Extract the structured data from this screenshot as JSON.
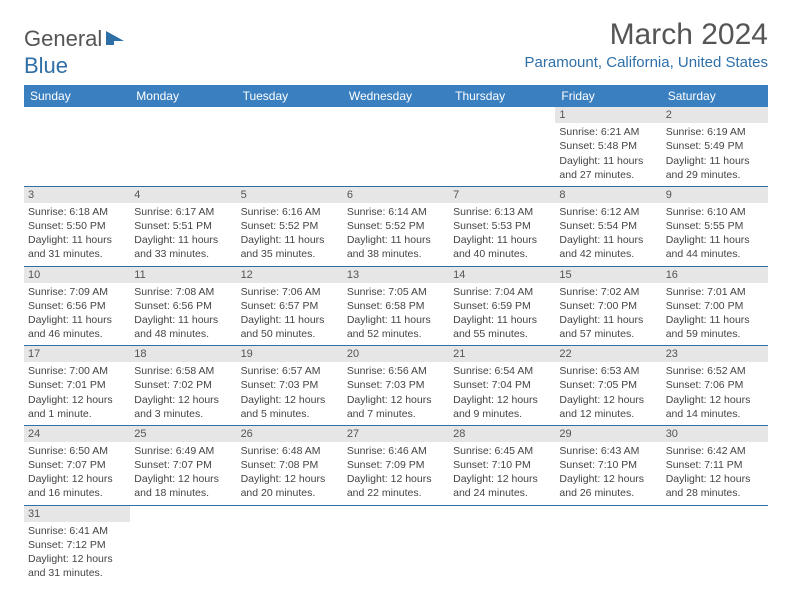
{
  "logo": {
    "text_main": "General",
    "text_accent": "Blue",
    "icon_name": "flag-icon",
    "accent_color": "#2f6fa8"
  },
  "title": "March 2024",
  "location": "Paramount, California, United States",
  "header_bg": "#3a7fbf",
  "header_text_color": "#ffffff",
  "daynum_bg": "#e6e6e6",
  "border_color": "#2f6fa8",
  "weekdays": [
    "Sunday",
    "Monday",
    "Tuesday",
    "Wednesday",
    "Thursday",
    "Friday",
    "Saturday"
  ],
  "weeks": [
    [
      null,
      null,
      null,
      null,
      null,
      {
        "n": "1",
        "sr": "Sunrise: 6:21 AM",
        "ss": "Sunset: 5:48 PM",
        "dl": "Daylight: 11 hours and 27 minutes."
      },
      {
        "n": "2",
        "sr": "Sunrise: 6:19 AM",
        "ss": "Sunset: 5:49 PM",
        "dl": "Daylight: 11 hours and 29 minutes."
      }
    ],
    [
      {
        "n": "3",
        "sr": "Sunrise: 6:18 AM",
        "ss": "Sunset: 5:50 PM",
        "dl": "Daylight: 11 hours and 31 minutes."
      },
      {
        "n": "4",
        "sr": "Sunrise: 6:17 AM",
        "ss": "Sunset: 5:51 PM",
        "dl": "Daylight: 11 hours and 33 minutes."
      },
      {
        "n": "5",
        "sr": "Sunrise: 6:16 AM",
        "ss": "Sunset: 5:52 PM",
        "dl": "Daylight: 11 hours and 35 minutes."
      },
      {
        "n": "6",
        "sr": "Sunrise: 6:14 AM",
        "ss": "Sunset: 5:52 PM",
        "dl": "Daylight: 11 hours and 38 minutes."
      },
      {
        "n": "7",
        "sr": "Sunrise: 6:13 AM",
        "ss": "Sunset: 5:53 PM",
        "dl": "Daylight: 11 hours and 40 minutes."
      },
      {
        "n": "8",
        "sr": "Sunrise: 6:12 AM",
        "ss": "Sunset: 5:54 PM",
        "dl": "Daylight: 11 hours and 42 minutes."
      },
      {
        "n": "9",
        "sr": "Sunrise: 6:10 AM",
        "ss": "Sunset: 5:55 PM",
        "dl": "Daylight: 11 hours and 44 minutes."
      }
    ],
    [
      {
        "n": "10",
        "sr": "Sunrise: 7:09 AM",
        "ss": "Sunset: 6:56 PM",
        "dl": "Daylight: 11 hours and 46 minutes."
      },
      {
        "n": "11",
        "sr": "Sunrise: 7:08 AM",
        "ss": "Sunset: 6:56 PM",
        "dl": "Daylight: 11 hours and 48 minutes."
      },
      {
        "n": "12",
        "sr": "Sunrise: 7:06 AM",
        "ss": "Sunset: 6:57 PM",
        "dl": "Daylight: 11 hours and 50 minutes."
      },
      {
        "n": "13",
        "sr": "Sunrise: 7:05 AM",
        "ss": "Sunset: 6:58 PM",
        "dl": "Daylight: 11 hours and 52 minutes."
      },
      {
        "n": "14",
        "sr": "Sunrise: 7:04 AM",
        "ss": "Sunset: 6:59 PM",
        "dl": "Daylight: 11 hours and 55 minutes."
      },
      {
        "n": "15",
        "sr": "Sunrise: 7:02 AM",
        "ss": "Sunset: 7:00 PM",
        "dl": "Daylight: 11 hours and 57 minutes."
      },
      {
        "n": "16",
        "sr": "Sunrise: 7:01 AM",
        "ss": "Sunset: 7:00 PM",
        "dl": "Daylight: 11 hours and 59 minutes."
      }
    ],
    [
      {
        "n": "17",
        "sr": "Sunrise: 7:00 AM",
        "ss": "Sunset: 7:01 PM",
        "dl": "Daylight: 12 hours and 1 minute."
      },
      {
        "n": "18",
        "sr": "Sunrise: 6:58 AM",
        "ss": "Sunset: 7:02 PM",
        "dl": "Daylight: 12 hours and 3 minutes."
      },
      {
        "n": "19",
        "sr": "Sunrise: 6:57 AM",
        "ss": "Sunset: 7:03 PM",
        "dl": "Daylight: 12 hours and 5 minutes."
      },
      {
        "n": "20",
        "sr": "Sunrise: 6:56 AM",
        "ss": "Sunset: 7:03 PM",
        "dl": "Daylight: 12 hours and 7 minutes."
      },
      {
        "n": "21",
        "sr": "Sunrise: 6:54 AM",
        "ss": "Sunset: 7:04 PM",
        "dl": "Daylight: 12 hours and 9 minutes."
      },
      {
        "n": "22",
        "sr": "Sunrise: 6:53 AM",
        "ss": "Sunset: 7:05 PM",
        "dl": "Daylight: 12 hours and 12 minutes."
      },
      {
        "n": "23",
        "sr": "Sunrise: 6:52 AM",
        "ss": "Sunset: 7:06 PM",
        "dl": "Daylight: 12 hours and 14 minutes."
      }
    ],
    [
      {
        "n": "24",
        "sr": "Sunrise: 6:50 AM",
        "ss": "Sunset: 7:07 PM",
        "dl": "Daylight: 12 hours and 16 minutes."
      },
      {
        "n": "25",
        "sr": "Sunrise: 6:49 AM",
        "ss": "Sunset: 7:07 PM",
        "dl": "Daylight: 12 hours and 18 minutes."
      },
      {
        "n": "26",
        "sr": "Sunrise: 6:48 AM",
        "ss": "Sunset: 7:08 PM",
        "dl": "Daylight: 12 hours and 20 minutes."
      },
      {
        "n": "27",
        "sr": "Sunrise: 6:46 AM",
        "ss": "Sunset: 7:09 PM",
        "dl": "Daylight: 12 hours and 22 minutes."
      },
      {
        "n": "28",
        "sr": "Sunrise: 6:45 AM",
        "ss": "Sunset: 7:10 PM",
        "dl": "Daylight: 12 hours and 24 minutes."
      },
      {
        "n": "29",
        "sr": "Sunrise: 6:43 AM",
        "ss": "Sunset: 7:10 PM",
        "dl": "Daylight: 12 hours and 26 minutes."
      },
      {
        "n": "30",
        "sr": "Sunrise: 6:42 AM",
        "ss": "Sunset: 7:11 PM",
        "dl": "Daylight: 12 hours and 28 minutes."
      }
    ],
    [
      {
        "n": "31",
        "sr": "Sunrise: 6:41 AM",
        "ss": "Sunset: 7:12 PM",
        "dl": "Daylight: 12 hours and 31 minutes."
      },
      null,
      null,
      null,
      null,
      null,
      null
    ]
  ]
}
